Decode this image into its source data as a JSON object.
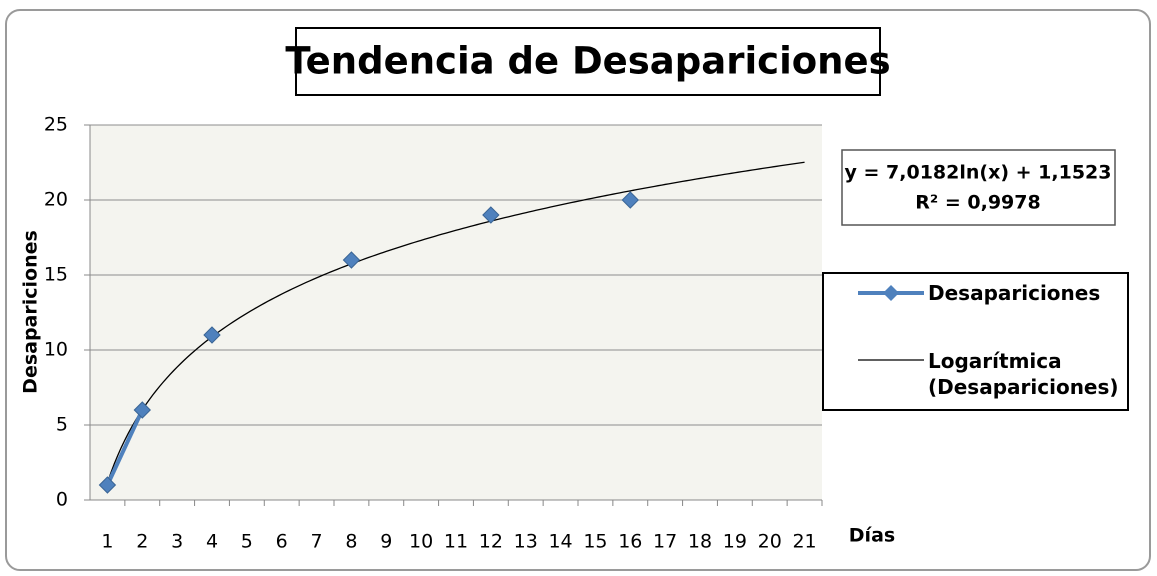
{
  "chart_data": {
    "type": "line",
    "title": "Tendencia de Desapariciones",
    "x_label": "Días",
    "y_label": "Desapariciones",
    "x": [
      1,
      2,
      3,
      4,
      5,
      6,
      7,
      8,
      9,
      10,
      11,
      12,
      13,
      14,
      15,
      16,
      17,
      18,
      19,
      20,
      21
    ],
    "series": [
      {
        "name": "Desapariciones",
        "color": "#4f81bd",
        "values": [
          1,
          6,
          null,
          11,
          null,
          null,
          null,
          16,
          null,
          null,
          null,
          19,
          null,
          null,
          null,
          20,
          null,
          null,
          null,
          null,
          null
        ]
      }
    ],
    "trendline": {
      "name": "Logarítmica (Desapariciones)",
      "color": "#000000",
      "equation": "y = 7,0182ln(x) + 1,1523",
      "r_squared": "R² = 0,9978",
      "coefficients": [
        7.0182,
        1.1523
      ]
    },
    "xlim": [
      0.5,
      21.5
    ],
    "ylim": [
      0,
      25
    ],
    "yticks": [
      0,
      5,
      10,
      15,
      20,
      25
    ],
    "grid": true
  }
}
